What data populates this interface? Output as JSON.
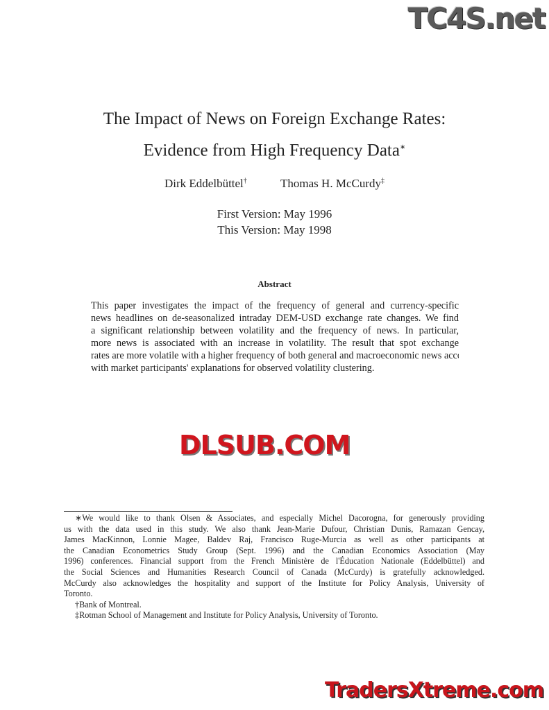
{
  "title_lines": [
    "The Impact of News on Foreign Exchange Rates:",
    "Evidence from High Frequency Data"
  ],
  "title_mark": "∗",
  "authors": [
    {
      "name": "Dirk Eddelbüttel",
      "mark": "†"
    },
    {
      "name": "Thomas H. McCurdy",
      "mark": "‡"
    }
  ],
  "versions": [
    "First Version: May 1996",
    "This Version: May 1998"
  ],
  "abstract": {
    "heading": "Abstract",
    "lines": [
      "This paper investigates the impact of the frequency of general and currency-specific",
      "news headlines on de-seasonalized intraday DEM-USD exchange rate changes. We find",
      "a significant relationship between volatility and the frequency of news. In particular,",
      "more news is associated with an increase in volatility. The result that spot exchange",
      "rates are more volatile with a higher frequency of both general and macroeconomic news accords",
      "with market participants' explanations for observed volatility clustering."
    ]
  },
  "footnotes": {
    "star_lines": [
      "∗We would like to thank Olsen & Associates, and especially Michel Dacorogna, for generously providing",
      "us with the data used in this study. We also thank Jean-Marie Dufour, Christian Dunis, Ramazan Gencay,",
      "James MacKinnon, Lonnie Magee, Baldev Raj, Francisco Ruge-Murcia as well as other participants at",
      "the Canadian Econometrics Study Group (Sept. 1996) and the Canadian Economics Association (May",
      "1996) conferences. Financial support from the French Ministère de l'Éducation Nationale (Eddelbüttel) and",
      "the Social Sciences and Humanities Research Council of Canada (McCurdy) is gratefully acknowledged.",
      "McCurdy also acknowledges the hospitality and support of the Institute for Policy Analysis, University of",
      "Toronto."
    ],
    "dagger": "†Bank of Montreal.",
    "ddagger": "‡Rotman School of Management and Institute for Policy Analysis, University of Toronto."
  },
  "watermarks": {
    "top_right": "TC4S.net",
    "center": "DLSUB.COM",
    "bottom_right": "TradersXtreme.com"
  }
}
